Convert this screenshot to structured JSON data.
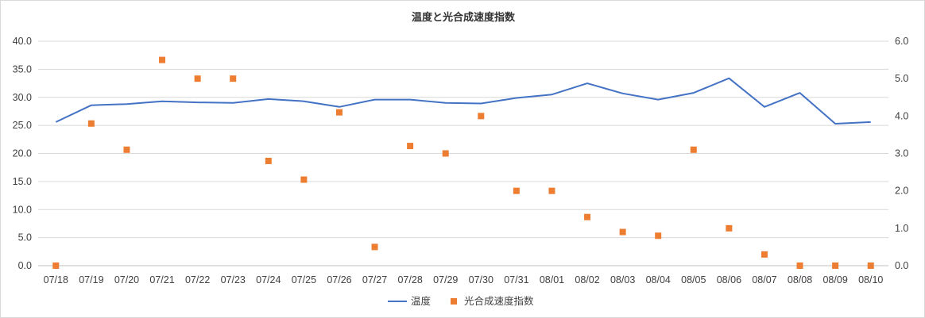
{
  "chart_data": {
    "type": "line",
    "title": "温度と光合成速度指数",
    "categories": [
      "07/18",
      "07/19",
      "07/20",
      "07/21",
      "07/22",
      "07/23",
      "07/24",
      "07/25",
      "07/26",
      "07/27",
      "07/28",
      "07/29",
      "07/30",
      "07/31",
      "08/01",
      "08/02",
      "08/03",
      "08/04",
      "08/05",
      "08/06",
      "08/07",
      "08/08",
      "08/09",
      "08/10"
    ],
    "y_left": {
      "range": [
        0,
        40
      ],
      "ticks": [
        "0.0",
        "5.0",
        "10.0",
        "15.0",
        "20.0",
        "25.0",
        "30.0",
        "35.0",
        "40.0"
      ]
    },
    "y_right": {
      "range": [
        0,
        6
      ],
      "ticks": [
        "0.0",
        "1.0",
        "2.0",
        "3.0",
        "4.0",
        "5.0",
        "6.0"
      ]
    },
    "grid": true,
    "legend_position": "bottom",
    "series": [
      {
        "name": "温度",
        "kind": "line",
        "axis": "left",
        "color": "#4472c4",
        "values": [
          25.6,
          28.6,
          28.8,
          29.3,
          29.1,
          29.0,
          29.7,
          29.3,
          28.3,
          29.6,
          29.6,
          29.0,
          28.9,
          29.9,
          30.5,
          32.5,
          30.7,
          29.6,
          30.8,
          33.4,
          28.3,
          30.8,
          25.3,
          25.6
        ]
      },
      {
        "name": "光合成速度指数",
        "kind": "scatter",
        "axis": "right",
        "color": "#ed7d31",
        "values": [
          0.0,
          3.8,
          3.1,
          5.5,
          5.0,
          5.0,
          2.8,
          2.3,
          4.1,
          0.5,
          3.2,
          3.0,
          4.0,
          2.0,
          2.0,
          1.3,
          0.9,
          0.8,
          3.1,
          1.0,
          0.3,
          0.0,
          0.0,
          0.0
        ]
      }
    ]
  }
}
